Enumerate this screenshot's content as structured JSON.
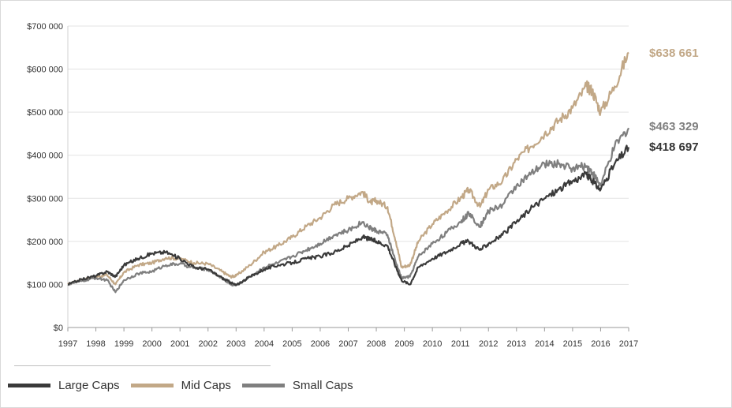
{
  "chart_data": {
    "type": "line",
    "title": "",
    "xlabel": "",
    "ylabel": "",
    "x_ticks": [
      "1997",
      "1998",
      "1999",
      "2000",
      "2001",
      "2002",
      "2003",
      "2004",
      "2005",
      "2006",
      "2007",
      "2008",
      "2009",
      "2010",
      "2011",
      "2012",
      "2013",
      "2014",
      "2015",
      "2016",
      "2017"
    ],
    "y_ticks": [
      "$0",
      "$100 000",
      "$200 000",
      "$300 000",
      "$400 000",
      "$500 000",
      "$600 000",
      "$700 000"
    ],
    "xlim": [
      1997,
      2017
    ],
    "ylim": [
      0,
      700000
    ],
    "grid": "horizontal",
    "legend_position": "bottom-left",
    "series": [
      {
        "name": "Mid Caps",
        "color": "#c2a887",
        "end_label": "$638 661",
        "x": [
          1997.0,
          1997.5,
          1998.0,
          1998.4,
          1998.7,
          1999.0,
          1999.5,
          2000.0,
          2000.5,
          2001.0,
          2001.5,
          2002.0,
          2002.5,
          2002.8,
          2003.0,
          2003.5,
          2004.0,
          2004.5,
          2005.0,
          2005.5,
          2006.0,
          2006.5,
          2007.0,
          2007.5,
          2007.8,
          2008.0,
          2008.4,
          2008.7,
          2008.9,
          2009.2,
          2009.5,
          2010.0,
          2010.5,
          2011.0,
          2011.3,
          2011.7,
          2012.0,
          2012.5,
          2013.0,
          2013.5,
          2014.0,
          2014.5,
          2015.0,
          2015.5,
          2015.7,
          2016.0,
          2016.5,
          2017.0
        ],
        "y": [
          100000,
          112000,
          118000,
          122000,
          100000,
          128000,
          145000,
          150000,
          162000,
          160000,
          150000,
          148000,
          130000,
          118000,
          120000,
          145000,
          175000,
          190000,
          210000,
          235000,
          255000,
          285000,
          300000,
          315000,
          290000,
          295000,
          280000,
          200000,
          140000,
          145000,
          200000,
          240000,
          270000,
          300000,
          320000,
          280000,
          320000,
          340000,
          390000,
          420000,
          450000,
          480000,
          510000,
          560000,
          550000,
          500000,
          560000,
          638661
        ]
      },
      {
        "name": "Small Caps",
        "color": "#7f7f7f",
        "end_label": "$463 329",
        "x": [
          1997.0,
          1997.5,
          1998.0,
          1998.4,
          1998.7,
          1999.0,
          1999.5,
          2000.0,
          2000.5,
          2001.0,
          2001.5,
          2002.0,
          2002.5,
          2002.8,
          2003.0,
          2003.5,
          2004.0,
          2004.5,
          2005.0,
          2005.5,
          2006.0,
          2006.5,
          2007.0,
          2007.5,
          2007.8,
          2008.0,
          2008.4,
          2008.7,
          2008.9,
          2009.2,
          2009.5,
          2010.0,
          2010.5,
          2011.0,
          2011.3,
          2011.7,
          2012.0,
          2012.5,
          2013.0,
          2013.5,
          2014.0,
          2014.5,
          2015.0,
          2015.5,
          2015.7,
          2016.0,
          2016.5,
          2017.0
        ],
        "y": [
          100000,
          108000,
          115000,
          110000,
          82000,
          110000,
          125000,
          130000,
          145000,
          148000,
          138000,
          135000,
          115000,
          100000,
          98000,
          118000,
          140000,
          150000,
          165000,
          180000,
          195000,
          215000,
          225000,
          245000,
          230000,
          225000,
          215000,
          150000,
          115000,
          118000,
          165000,
          195000,
          220000,
          245000,
          265000,
          235000,
          270000,
          285000,
          330000,
          355000,
          380000,
          380000,
          370000,
          375000,
          360000,
          330000,
          420000,
          463329
        ]
      },
      {
        "name": "Large Caps",
        "color": "#3a3a3a",
        "end_label": "$418 697",
        "x": [
          1997.0,
          1997.5,
          1998.0,
          1998.4,
          1998.7,
          1999.0,
          1999.5,
          2000.0,
          2000.5,
          2001.0,
          2001.5,
          2002.0,
          2002.5,
          2002.8,
          2003.0,
          2003.5,
          2004.0,
          2004.5,
          2005.0,
          2005.5,
          2006.0,
          2006.5,
          2007.0,
          2007.5,
          2007.8,
          2008.0,
          2008.4,
          2008.7,
          2008.9,
          2009.2,
          2009.5,
          2010.0,
          2010.5,
          2011.0,
          2011.3,
          2011.7,
          2012.0,
          2012.5,
          2013.0,
          2013.5,
          2014.0,
          2014.5,
          2015.0,
          2015.5,
          2015.7,
          2016.0,
          2016.5,
          2017.0
        ],
        "y": [
          100000,
          112000,
          120000,
          130000,
          118000,
          145000,
          160000,
          172000,
          175000,
          160000,
          140000,
          135000,
          115000,
          105000,
          98000,
          118000,
          135000,
          145000,
          150000,
          160000,
          165000,
          175000,
          190000,
          210000,
          205000,
          200000,
          190000,
          140000,
          110000,
          100000,
          140000,
          160000,
          175000,
          195000,
          200000,
          180000,
          195000,
          215000,
          245000,
          275000,
          300000,
          320000,
          340000,
          355000,
          340000,
          320000,
          380000,
          418697
        ]
      }
    ]
  }
}
